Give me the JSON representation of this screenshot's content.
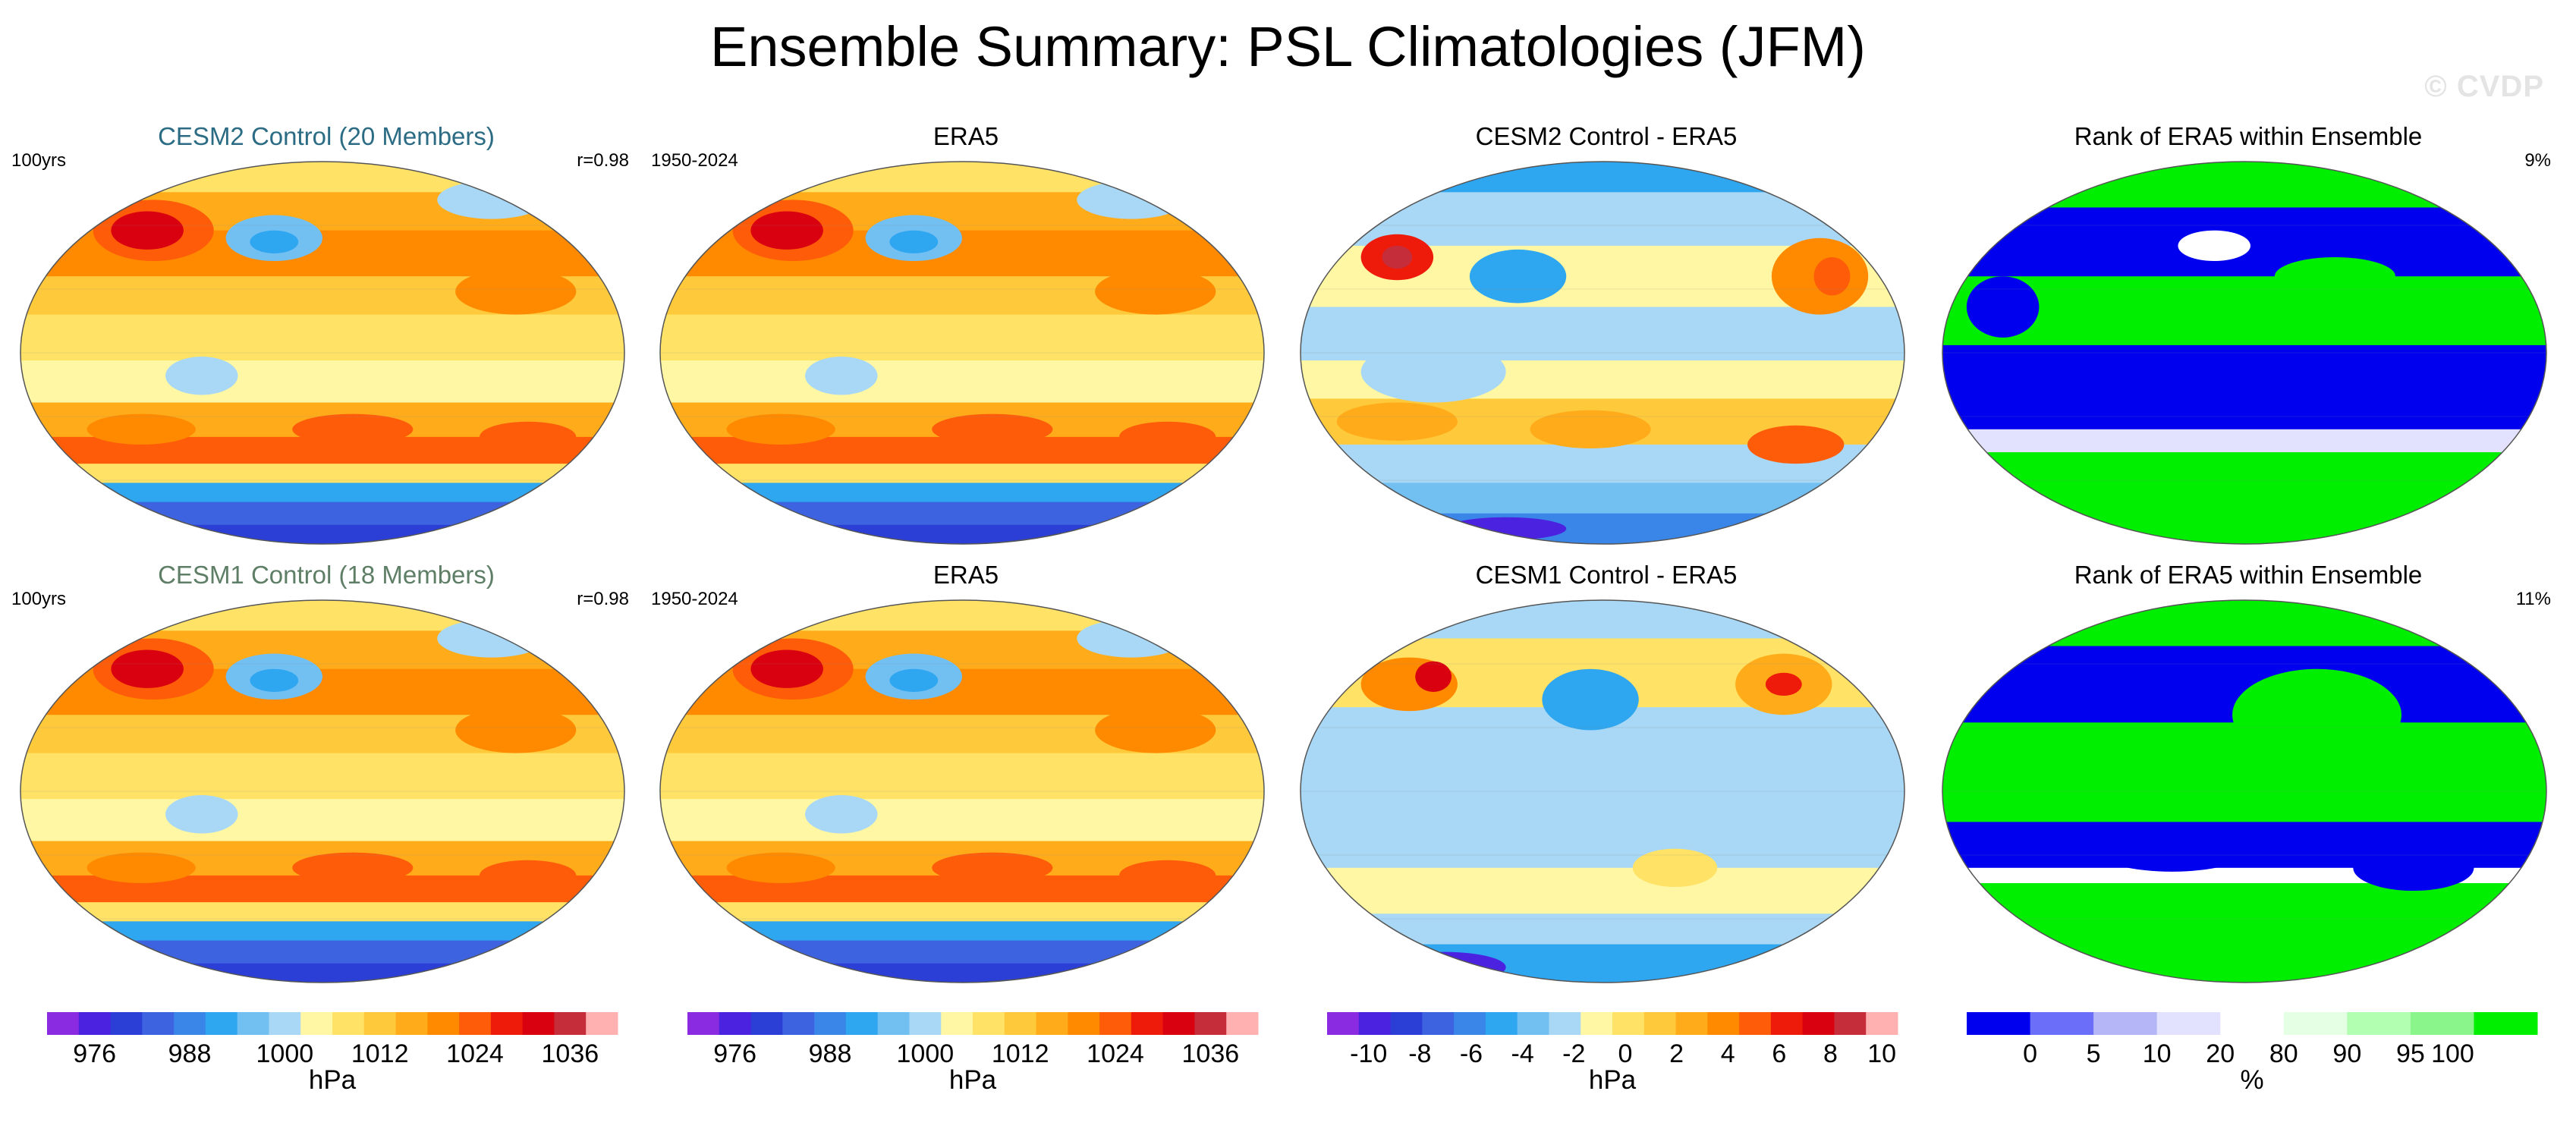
{
  "title": "Ensemble Summary: PSL Climatologies (JFM)",
  "watermark": "© CVDP",
  "colors": {
    "psl_levels": [
      "#8a2be2",
      "#4b22e0",
      "#2b3fd6",
      "#3d63e0",
      "#3a86e8",
      "#2fa6f0",
      "#72bff2",
      "#a8d8f5",
      "#fff7a3",
      "#ffe266",
      "#ffc93c",
      "#ffab1a",
      "#ff8a00",
      "#ff5c0a",
      "#ee1a0a",
      "#d9000f",
      "#c62d3a",
      "#ffb0b0"
    ],
    "rank_levels": [
      "#0000ee",
      "#6a6ef8",
      "#b4b6f8",
      "#e2e2ff",
      "#ffffff",
      "#e4ffe4",
      "#b2ffb2",
      "#8af58a",
      "#00ee00"
    ]
  },
  "chart_data": [
    {
      "type": "heatmap",
      "title": "CESM2 Control (20 Members)",
      "title_color": "#2b6c84",
      "left_label": "100yrs",
      "right_label": "r=0.98",
      "colorbar": "psl"
    },
    {
      "type": "heatmap",
      "title": "ERA5",
      "left_label": "1950-2024",
      "right_label": "",
      "colorbar": "psl"
    },
    {
      "type": "heatmap",
      "title": "CESM2 Control - ERA5",
      "left_label": "",
      "right_label": "",
      "colorbar": "diff"
    },
    {
      "type": "heatmap",
      "title": "Rank of ERA5 within Ensemble",
      "left_label": "",
      "right_label": "9%",
      "colorbar": "rank"
    },
    {
      "type": "heatmap",
      "title": "CESM1 Control (18 Members)",
      "title_color": "#5e7e66",
      "left_label": "100yrs",
      "right_label": "r=0.98",
      "colorbar": "psl"
    },
    {
      "type": "heatmap",
      "title": "ERA5",
      "left_label": "1950-2024",
      "right_label": "",
      "colorbar": "psl"
    },
    {
      "type": "heatmap",
      "title": "CESM1 Control - ERA5",
      "left_label": "",
      "right_label": "",
      "colorbar": "diff"
    },
    {
      "type": "heatmap",
      "title": "Rank of ERA5 within Ensemble",
      "left_label": "",
      "right_label": "11%",
      "colorbar": "rank"
    }
  ],
  "colorbars": {
    "psl": {
      "units": "hPa",
      "levels": [
        972,
        976,
        980,
        984,
        988,
        992,
        996,
        1000,
        1004,
        1008,
        1012,
        1016,
        1020,
        1024,
        1028,
        1032,
        1036,
        1040
      ],
      "labels": [
        "976",
        "988",
        "1000",
        "1012",
        "1024",
        "1036"
      ],
      "label_values": [
        976,
        988,
        1000,
        1012,
        1024,
        1036
      ]
    },
    "diff": {
      "units": "hPa",
      "levels": [
        -11,
        -10,
        -9,
        -8,
        -7,
        -6,
        -5,
        -4,
        -3,
        -2,
        -1,
        0,
        1,
        2,
        3,
        4,
        5,
        6,
        7,
        8,
        9,
        10
      ],
      "labels": [
        "-10",
        "-8",
        "-6",
        "-4",
        "-2",
        "0",
        "2",
        "4",
        "6",
        "8",
        "10"
      ],
      "label_values": [
        -10,
        -8,
        -6,
        -4,
        -2,
        0,
        2,
        4,
        6,
        8,
        10
      ]
    },
    "rank": {
      "units": "%",
      "levels": [
        0,
        5,
        10,
        20,
        80,
        90,
        95,
        100
      ],
      "labels": [
        "0",
        "5",
        "10",
        "20",
        "80",
        "90",
        "95",
        "100"
      ],
      "label_values": [
        0,
        5,
        10,
        20,
        80,
        90,
        95,
        100
      ]
    }
  }
}
